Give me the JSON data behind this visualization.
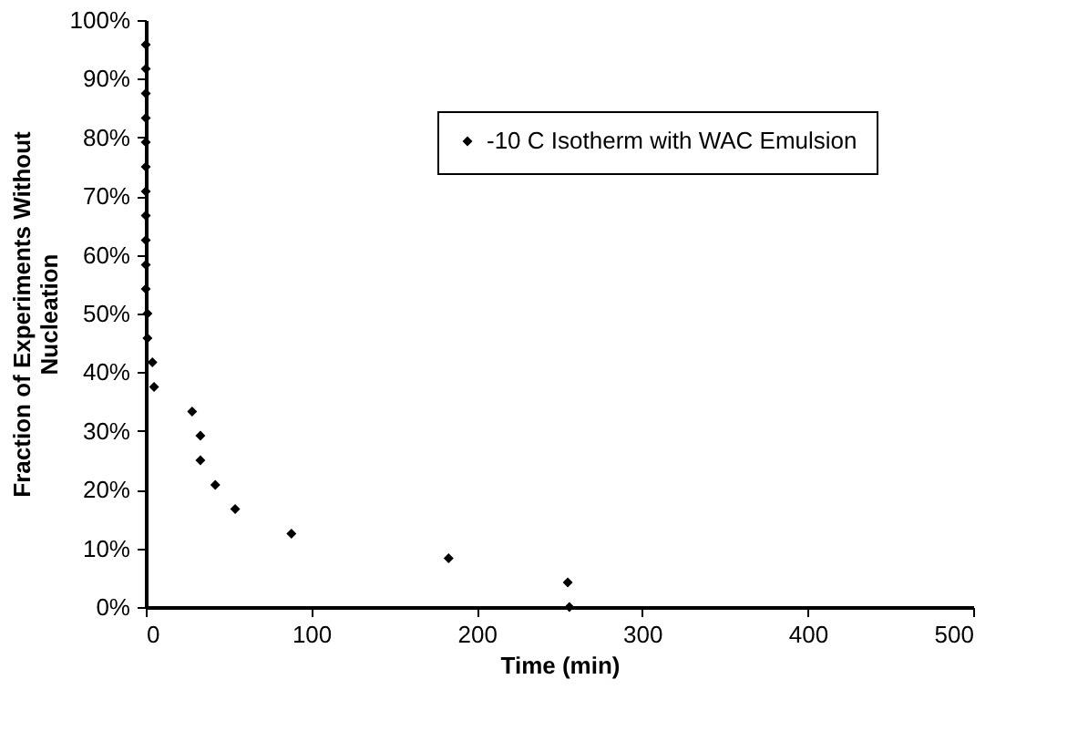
{
  "chart_data": {
    "type": "scatter",
    "xlabel": "Time (min)",
    "ylabel": "Fraction of Experiments Without Nucleation",
    "x": [
      0,
      0,
      0,
      0,
      0,
      0,
      0,
      0,
      0,
      0,
      0,
      1,
      1,
      4,
      5,
      28,
      33,
      33,
      42,
      54,
      88,
      183,
      255,
      256
    ],
    "series": [
      {
        "name": "-10 C Isotherm with WAC Emulsion",
        "color": "#000000",
        "values": [
          95.8,
          91.7,
          87.5,
          83.3,
          79.2,
          75,
          70.8,
          66.7,
          62.5,
          58.3,
          54.2,
          50,
          45.8,
          41.7,
          37.5,
          33.3,
          29.2,
          25,
          20.8,
          16.7,
          12.5,
          8.3,
          4.2,
          0
        ]
      }
    ],
    "xlim": [
      0,
      500
    ],
    "xticks": [
      0,
      100,
      200,
      300,
      400,
      500
    ],
    "ylim": [
      0,
      100
    ],
    "yticks": [
      {
        "value": 0,
        "label": "0%"
      },
      {
        "value": 10,
        "label": "10%"
      },
      {
        "value": 20,
        "label": "20%"
      },
      {
        "value": 30,
        "label": "30%"
      },
      {
        "value": 40,
        "label": "40%"
      },
      {
        "value": 50,
        "label": "50%"
      },
      {
        "value": 60,
        "label": "60%"
      },
      {
        "value": 70,
        "label": "70%"
      },
      {
        "value": 80,
        "label": "80%"
      },
      {
        "value": 90,
        "label": "90%"
      },
      {
        "value": 100,
        "label": "100%"
      }
    ],
    "marker": "diamond",
    "grid": false,
    "legend": "top right"
  }
}
